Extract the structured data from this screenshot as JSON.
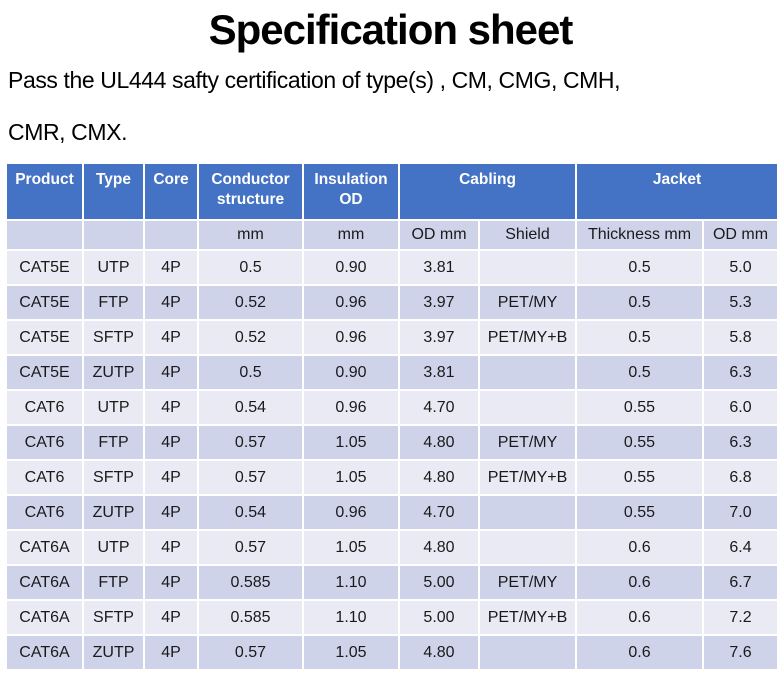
{
  "page": {
    "title": "Specification sheet",
    "subtitle_lines": [
      "Pass the UL444 safty certification of type(s) , CM, CMG, CMH,",
      "CMR, CMX."
    ]
  },
  "colors": {
    "header_bg": "#4472C4",
    "header_text": "#FFFFFF",
    "band_light": "#E9EAF4",
    "band_dark": "#CED3EA",
    "grid_line": "#FFFFFF",
    "body_text": "#1A1A1A"
  },
  "table": {
    "header_row1": [
      {
        "label": "Product",
        "colspan": 1
      },
      {
        "label": "Type",
        "colspan": 1
      },
      {
        "label": "Core",
        "colspan": 1
      },
      {
        "label": "Conductor structure",
        "colspan": 1
      },
      {
        "label": "Insulation OD",
        "colspan": 1
      },
      {
        "label": "Cabling",
        "colspan": 2
      },
      {
        "label": "Jacket",
        "colspan": 2
      }
    ],
    "header_row2": [
      "",
      "",
      "",
      "mm",
      "mm",
      "OD mm",
      "Shield",
      "Thickness mm",
      "OD mm"
    ],
    "rows": [
      [
        "CAT5E",
        "UTP",
        "4P",
        "0.5",
        "0.90",
        "3.81",
        "",
        "0.5",
        "5.0"
      ],
      [
        "CAT5E",
        "FTP",
        "4P",
        "0.52",
        "0.96",
        "3.97",
        "PET/MY",
        "0.5",
        "5.3"
      ],
      [
        "CAT5E",
        "SFTP",
        "4P",
        "0.52",
        "0.96",
        "3.97",
        "PET/MY+B",
        "0.5",
        "5.8"
      ],
      [
        "CAT5E",
        "ZUTP",
        "4P",
        "0.5",
        "0.90",
        "3.81",
        "",
        "0.5",
        "6.3"
      ],
      [
        "CAT6",
        "UTP",
        "4P",
        "0.54",
        "0.96",
        "4.70",
        "",
        "0.55",
        "6.0"
      ],
      [
        "CAT6",
        "FTP",
        "4P",
        "0.57",
        "1.05",
        "4.80",
        "PET/MY",
        "0.55",
        "6.3"
      ],
      [
        "CAT6",
        "SFTP",
        "4P",
        "0.57",
        "1.05",
        "4.80",
        "PET/MY+B",
        "0.55",
        "6.8"
      ],
      [
        "CAT6",
        "ZUTP",
        "4P",
        "0.54",
        "0.96",
        "4.70",
        "",
        "0.55",
        "7.0"
      ],
      [
        "CAT6A",
        "UTP",
        "4P",
        "0.57",
        "1.05",
        "4.80",
        "",
        "0.6",
        "6.4"
      ],
      [
        "CAT6A",
        "FTP",
        "4P",
        "0.585",
        "1.10",
        "5.00",
        "PET/MY",
        "0.6",
        "6.7"
      ],
      [
        "CAT6A",
        "SFTP",
        "4P",
        "0.585",
        "1.10",
        "5.00",
        "PET/MY+B",
        "0.6",
        "7.2"
      ],
      [
        "CAT6A",
        "ZUTP",
        "4P",
        "0.57",
        "1.05",
        "4.80",
        "",
        "0.6",
        "7.6"
      ]
    ]
  }
}
